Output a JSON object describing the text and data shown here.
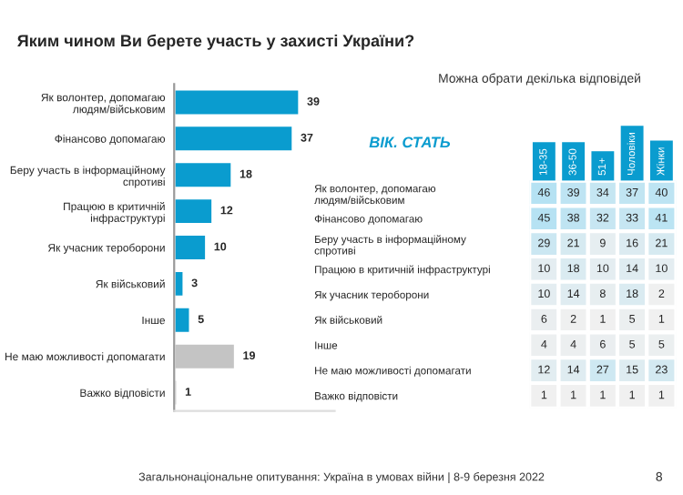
{
  "chart_data": [
    {
      "type": "bar",
      "orientation": "horizontal",
      "title": "Яким чином Ви берете участь у захисті України?",
      "categories": [
        "Як волонтер, допомагаю\nлюдям/військовим",
        "Фінансово допомагаю",
        "Беру участь в інформаційному\nспротиві",
        "Працюю в критичній\nінфраструктурі",
        "Як учасник тероборони",
        "Як військовий",
        "Інше",
        "Не маю можливості допомагати",
        "Важко відповісти"
      ],
      "values": [
        39,
        37,
        18,
        12,
        10,
        3,
        5,
        19,
        1
      ],
      "colors": [
        "#0a9ccf",
        "#0a9ccf",
        "#0a9ccf",
        "#0a9ccf",
        "#0a9ccf",
        "#0a9ccf",
        "#0a9ccf",
        "#c4c4c4",
        "#c4c4c4"
      ],
      "xlim": [
        0,
        50
      ],
      "data_labels": true,
      "tick_labels": "y",
      "grid": false,
      "annotations": [
        "Загальнонаціональне опитування: Україна в умовах війни | 8-9 березня 2022",
        "8"
      ]
    },
    {
      "type": "heatmap",
      "title": "ВІК. СТАТЬ",
      "subtitle": "Можна обрати декілька відповідей",
      "data_labels": true,
      "categories": [
        "18-35",
        "36-50",
        "51+",
        "Чоловіки",
        "Жінки"
      ],
      "y_categories": [
        "Як волонтер, допомагаю\nлюдям/військовим",
        "Фінансово допомагаю",
        "Беру участь в інформаційному\nспротиві",
        "Працюю в критичній інфраструктурі",
        "Як учасник тероборони",
        "Як військовий",
        "Інше",
        "Не маю можливості допомагати",
        "Важко відповісти"
      ],
      "cells": [
        [
          46,
          39,
          34,
          37,
          40
        ],
        [
          45,
          38,
          32,
          33,
          41
        ],
        [
          29,
          21,
          9,
          16,
          21
        ],
        [
          10,
          18,
          10,
          14,
          10
        ],
        [
          10,
          14,
          8,
          18,
          2
        ],
        [
          6,
          2,
          1,
          5,
          1
        ],
        [
          4,
          4,
          6,
          5,
          5
        ],
        [
          12,
          14,
          27,
          15,
          23
        ],
        [
          1,
          1,
          1,
          1,
          1
        ]
      ]
    }
  ]
}
